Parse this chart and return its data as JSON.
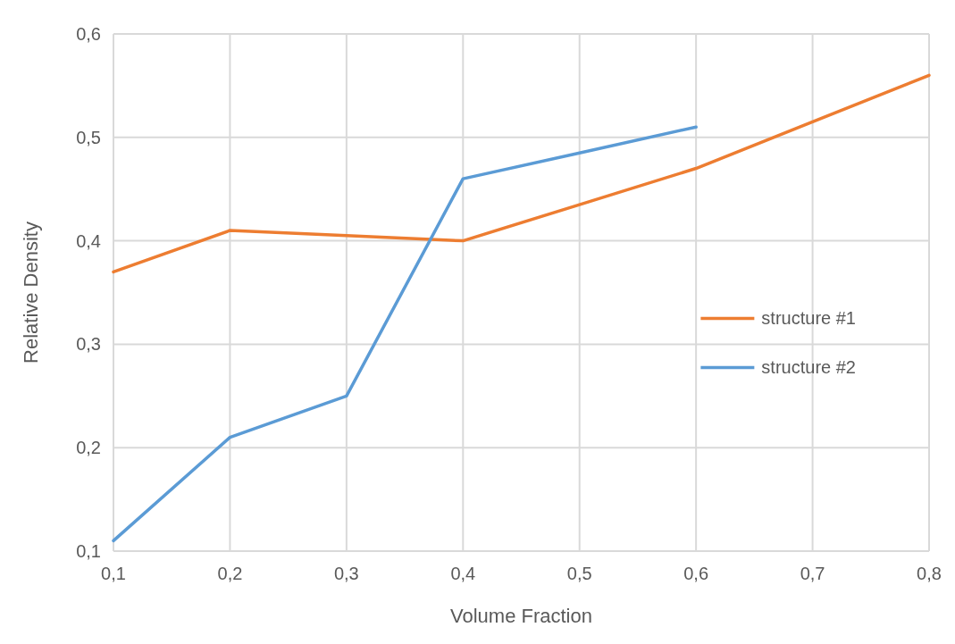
{
  "chart_data": {
    "type": "line",
    "xlabel": "Volume Fraction",
    "ylabel": "Relative Density",
    "x": [
      0.1,
      0.2,
      0.3,
      0.4,
      0.5,
      0.6,
      0.7,
      0.8
    ],
    "series": [
      {
        "name": "structure #1",
        "color": "#ed7d31",
        "values": [
          0.37,
          0.41,
          0.405,
          0.4,
          0.435,
          0.47,
          0.515,
          0.56
        ]
      },
      {
        "name": "structure #2",
        "color": "#5b9bd5",
        "values": [
          0.11,
          0.21,
          0.25,
          0.46,
          0.485,
          0.51,
          null,
          null
        ]
      }
    ],
    "xlim": [
      0.1,
      0.8
    ],
    "xticks": [
      {
        "value": 0.1,
        "label": "0,1"
      },
      {
        "value": 0.2,
        "label": "0,2"
      },
      {
        "value": 0.3,
        "label": "0,3"
      },
      {
        "value": 0.4,
        "label": "0,4"
      },
      {
        "value": 0.5,
        "label": "0,5"
      },
      {
        "value": 0.6,
        "label": "0,6"
      },
      {
        "value": 0.7,
        "label": "0,7"
      },
      {
        "value": 0.8,
        "label": "0,8"
      }
    ],
    "ylim": [
      0.1,
      0.6
    ],
    "yticks": [
      {
        "value": 0.1,
        "label": "0,1"
      },
      {
        "value": 0.2,
        "label": "0,2"
      },
      {
        "value": 0.3,
        "label": "0,3"
      },
      {
        "value": 0.4,
        "label": "0,4"
      },
      {
        "value": 0.5,
        "label": "0,5"
      },
      {
        "value": 0.6,
        "label": "0,6"
      }
    ],
    "grid": true,
    "legend": "right",
    "marker": "none",
    "line_style": "solid"
  }
}
